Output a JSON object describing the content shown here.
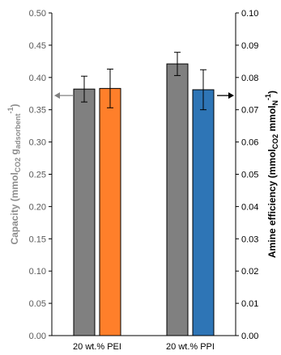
{
  "chart_data": {
    "type": "bar",
    "categories": [
      "20 wt.% PEI",
      "20 wt.% PPI"
    ],
    "y_left": {
      "label": "Capacity (mmol",
      "label_sub_co2": "CO2",
      "label_mid": " g",
      "label_sub_ads": "adsorbent",
      "label_sup": "-1",
      "label_end": ")",
      "ylim": [
        0,
        0.5
      ],
      "ticks": [
        "0.00",
        "0.05",
        "0.10",
        "0.15",
        "0.20",
        "0.25",
        "0.30",
        "0.35",
        "0.40",
        "0.45",
        "0.50"
      ]
    },
    "y_right": {
      "label": "Amine efficiency (mmol",
      "label_sub_co2": "CO2",
      "label_mid": " mmol",
      "label_sub_n": "N",
      "label_sup": "-1",
      "label_end": ")",
      "ylim": [
        0,
        0.1
      ],
      "ticks": [
        "0.00",
        "0.01",
        "0.02",
        "0.03",
        "0.04",
        "0.05",
        "0.06",
        "0.07",
        "0.08",
        "0.09",
        "0.10"
      ]
    },
    "bars": [
      {
        "category": 0,
        "slot": 0,
        "axis": "left",
        "value": 0.382,
        "error": 0.02,
        "color": "#808080"
      },
      {
        "category": 0,
        "slot": 1,
        "axis": "right",
        "value": 0.0766,
        "error": 0.006,
        "color": "#ff7f2a"
      },
      {
        "category": 1,
        "slot": 0,
        "axis": "left",
        "value": 0.421,
        "error": 0.018,
        "color": "#808080"
      },
      {
        "category": 1,
        "slot": 1,
        "axis": "right",
        "value": 0.0762,
        "error": 0.0062,
        "color": "#2e75b6"
      }
    ],
    "arrows": [
      {
        "direction": "left",
        "axis": "left",
        "value": 0.372,
        "color": "#808080"
      },
      {
        "direction": "right",
        "axis": "right",
        "value": 0.0744,
        "color": "#000000"
      }
    ],
    "grid": false
  }
}
